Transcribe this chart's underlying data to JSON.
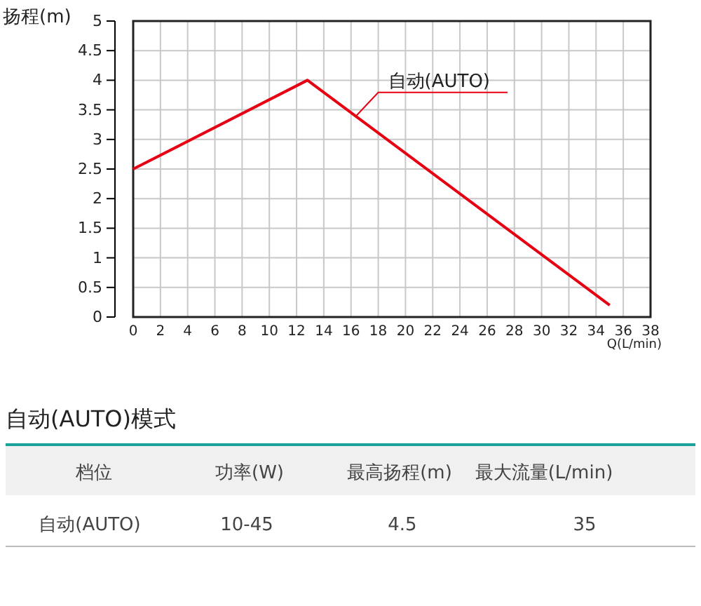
{
  "chart_data": [
    {
      "type": "line",
      "xlabel": "Q(L/min)",
      "ylabel": "扬程(m)",
      "xlim": [
        0,
        38
      ],
      "ylim": [
        0,
        5
      ],
      "xticks": [
        0,
        2,
        4,
        6,
        8,
        10,
        12,
        14,
        16,
        18,
        20,
        22,
        24,
        26,
        28,
        30,
        32,
        34,
        36,
        38
      ],
      "yticks": [
        0,
        0.5,
        1,
        1.5,
        2,
        2.5,
        3,
        3.5,
        4,
        4.5,
        5
      ],
      "grid": true,
      "series": [
        {
          "name": "自动(AUTO)",
          "color": "#e60012",
          "x": [
            0,
            12.8,
            35
          ],
          "values": [
            2.5,
            4.0,
            0.2
          ]
        }
      ]
    },
    {
      "type": "other",
      "title": "自动(AUTO)模式",
      "categories": [
        "档位",
        "功率(W)",
        "最高扬程(m)",
        "最大流量(L/min)"
      ],
      "annotations": [
        "自动(AUTO)",
        "10-45",
        "4.5",
        "35"
      ]
    }
  ]
}
